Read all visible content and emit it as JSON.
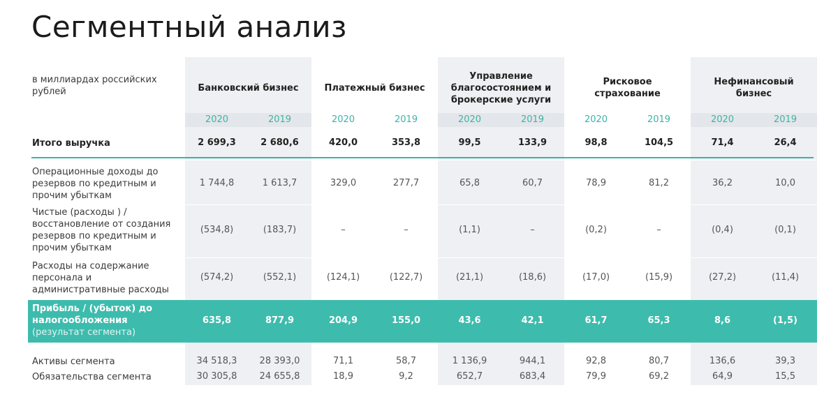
{
  "title": "Сегментный анализ",
  "table": {
    "unit_label": "в миллиардах российских рублей",
    "segments": [
      {
        "name": "Банковский бизнес",
        "years": [
          "2020",
          "2019"
        ]
      },
      {
        "name": "Платежный бизнес",
        "years": [
          "2020",
          "2019"
        ]
      },
      {
        "name": "Управление благосостоянием и брокерские услуги",
        "years": [
          "2020",
          "2019"
        ]
      },
      {
        "name": "Рисковое страхование",
        "years": [
          "2020",
          "2019"
        ]
      },
      {
        "name": "Нефинансовый бизнес",
        "years": [
          "2020",
          "2019"
        ]
      }
    ],
    "revenue": {
      "label": "Итого выручка",
      "values": [
        "2 699,3",
        "2 680,6",
        "420,0",
        "353,8",
        "99,5",
        "133,9",
        "98,8",
        "104,5",
        "71,4",
        "26,4"
      ]
    },
    "rows": [
      {
        "label": "Операционные доходы до резервов по кредитным и прочим убыткам",
        "values": [
          "1 744,8",
          "1 613,7",
          "329,0",
          "277,7",
          "65,8",
          "60,7",
          "78,9",
          "81,2",
          "36,2",
          "10,0"
        ]
      },
      {
        "label": "Чистые (расходы ) / восстановление от создания резервов по кредитным и прочим убыткам",
        "values": [
          "(534,8)",
          "(183,7)",
          "–",
          "–",
          "(1,1)",
          "–",
          "(0,2)",
          "–",
          "(0,4)",
          "(0,1)"
        ]
      },
      {
        "label": "Расходы на содержание персонала и административные расходы",
        "values": [
          "(574,2)",
          "(552,1)",
          "(124,1)",
          "(122,7)",
          "(21,1)",
          "(18,6)",
          "(17,0)",
          "(15,9)",
          "(27,2)",
          "(11,4)"
        ]
      }
    ],
    "profit": {
      "label": "Прибыль / (убыток) до налогообложения",
      "note": "(результат сегмента)",
      "values": [
        "635,8",
        "877,9",
        "204,9",
        "155,0",
        "43,6",
        "42,1",
        "61,7",
        "65,3",
        "8,6",
        "(1,5)"
      ]
    },
    "balance": [
      {
        "label": "Активы сегмента",
        "values": [
          "34 518,3",
          "28 393,0",
          "71,1",
          "58,7",
          "1 136,9",
          "944,1",
          "92,8",
          "80,7",
          "136,6",
          "39,3"
        ]
      },
      {
        "label": "Обязательства сегмента",
        "values": [
          "30 305,8",
          "24 655,8",
          "18,9",
          "9,2",
          "652,7",
          "683,4",
          "79,9",
          "69,2",
          "64,9",
          "15,5"
        ]
      }
    ]
  }
}
